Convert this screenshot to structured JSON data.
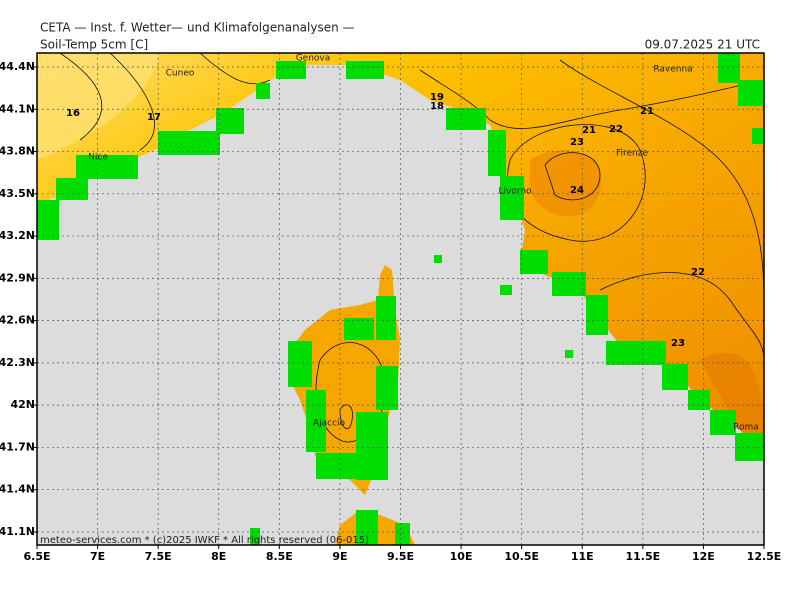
{
  "header": {
    "title": "CETA — Inst. f. Wetter— und Klimafolgenanalysen —",
    "field": "Soil-Temp 5cm [C]",
    "time": "09.07.2025 21 UTC"
  },
  "footer": "meteo-services.com * (c)2025 IWKF * All rights reserved (06-015)",
  "x_axis": {
    "labels": [
      "6.5E",
      "7E",
      "7.5E",
      "8E",
      "8.5E",
      "9E",
      "9.5E",
      "10E",
      "10.5E",
      "11E",
      "11.5E",
      "12E",
      "12.5E"
    ]
  },
  "y_axis": {
    "labels": [
      "44.4N",
      "44.1N",
      "43.8N",
      "43.5N",
      "43.2N",
      "42.9N",
      "42.6N",
      "42.3N",
      "42N",
      "41.7N",
      "41.4N",
      "41.1N"
    ]
  },
  "contour_labels": [
    "16",
    "17",
    "19",
    "18",
    "21",
    "22",
    "21",
    "23",
    "24",
    "22",
    "23"
  ],
  "places": [
    "Cuneo",
    "Genova",
    "Ravenna",
    "Nice",
    "Firenze",
    "Livorno",
    "Ajaccio",
    "Roma"
  ]
}
